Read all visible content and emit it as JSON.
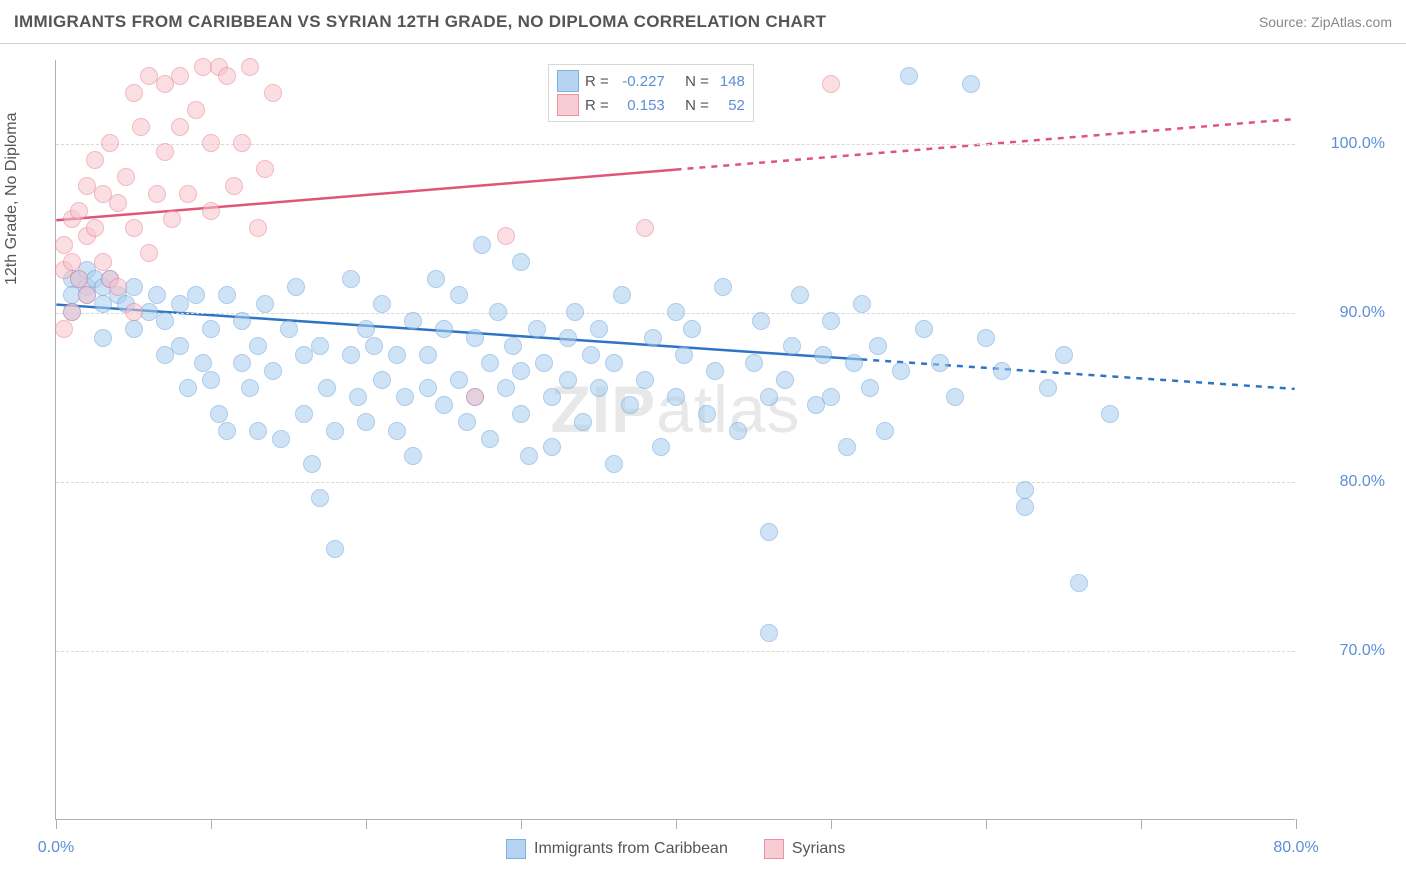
{
  "title": "IMMIGRANTS FROM CARIBBEAN VS SYRIAN 12TH GRADE, NO DIPLOMA CORRELATION CHART",
  "source_label": "Source: ",
  "source_name": "ZipAtlas.com",
  "y_axis_label": "12th Grade, No Diploma",
  "watermark": "ZIPatlas",
  "chart": {
    "type": "scatter",
    "xlim": [
      0,
      80
    ],
    "ylim": [
      60,
      105
    ],
    "x_ticks": [
      0,
      10,
      20,
      30,
      40,
      50,
      60,
      70,
      80
    ],
    "x_tick_labels": {
      "0": "0.0%",
      "80": "80.0%"
    },
    "y_ticks": [
      70,
      80,
      90,
      100
    ],
    "y_tick_labels": {
      "70": "70.0%",
      "80": "80.0%",
      "90": "90.0%",
      "100": "100.0%"
    },
    "background_color": "#ffffff",
    "grid_color": "#d8d8d8",
    "axis_color": "#b0b0b0",
    "tick_label_color": "#5b8fd6",
    "marker_radius": 9,
    "marker_border_width": 1.2,
    "series": [
      {
        "name": "Immigrants from Caribbean",
        "fill_color": "#a9cdf0",
        "stroke_color": "#6aa2de",
        "fill_opacity": 0.55,
        "line": {
          "color": "#2f74c4",
          "width": 2.5,
          "x1": 0,
          "y1": 90.5,
          "x2": 80,
          "y2": 85.5,
          "dash_after_x": 52
        },
        "R": "-0.227",
        "N": "148",
        "points": [
          [
            1,
            92
          ],
          [
            1,
            91
          ],
          [
            1.5,
            92
          ],
          [
            2,
            91.5
          ],
          [
            2,
            92.5
          ],
          [
            2,
            91
          ],
          [
            2.5,
            92
          ],
          [
            3,
            90.5
          ],
          [
            3,
            91.5
          ],
          [
            3.5,
            92
          ],
          [
            1,
            90
          ],
          [
            4,
            91
          ],
          [
            4.5,
            90.5
          ],
          [
            5,
            91.5
          ],
          [
            5,
            89
          ],
          [
            3,
            88.5
          ],
          [
            6,
            90
          ],
          [
            6.5,
            91
          ],
          [
            7,
            89.5
          ],
          [
            7,
            87.5
          ],
          [
            8,
            90.5
          ],
          [
            8,
            88
          ],
          [
            8.5,
            85.5
          ],
          [
            9,
            91
          ],
          [
            9.5,
            87
          ],
          [
            10,
            89
          ],
          [
            10,
            86
          ],
          [
            10.5,
            84
          ],
          [
            11,
            83
          ],
          [
            11,
            91
          ],
          [
            12,
            89.5
          ],
          [
            12,
            87
          ],
          [
            12.5,
            85.5
          ],
          [
            13,
            83
          ],
          [
            13,
            88
          ],
          [
            13.5,
            90.5
          ],
          [
            14,
            86.5
          ],
          [
            14.5,
            82.5
          ],
          [
            15,
            89
          ],
          [
            15.5,
            91.5
          ],
          [
            16,
            87.5
          ],
          [
            16,
            84
          ],
          [
            16.5,
            81
          ],
          [
            17,
            79
          ],
          [
            17,
            88
          ],
          [
            17.5,
            85.5
          ],
          [
            18,
            83
          ],
          [
            18,
            76
          ],
          [
            19,
            92
          ],
          [
            19,
            87.5
          ],
          [
            19.5,
            85
          ],
          [
            20,
            89
          ],
          [
            20,
            83.5
          ],
          [
            20.5,
            88
          ],
          [
            21,
            86
          ],
          [
            21,
            90.5
          ],
          [
            22,
            87.5
          ],
          [
            22,
            83
          ],
          [
            22.5,
            85
          ],
          [
            23,
            89.5
          ],
          [
            23,
            81.5
          ],
          [
            24,
            87.5
          ],
          [
            24,
            85.5
          ],
          [
            24.5,
            92
          ],
          [
            25,
            89
          ],
          [
            25,
            84.5
          ],
          [
            26,
            91
          ],
          [
            26,
            86
          ],
          [
            26.5,
            83.5
          ],
          [
            27,
            85
          ],
          [
            27,
            88.5
          ],
          [
            27.5,
            94
          ],
          [
            28,
            87
          ],
          [
            28,
            82.5
          ],
          [
            28.5,
            90
          ],
          [
            29,
            85.5
          ],
          [
            29.5,
            88
          ],
          [
            30,
            93
          ],
          [
            30,
            86.5
          ],
          [
            30,
            84
          ],
          [
            30.5,
            81.5
          ],
          [
            31,
            89
          ],
          [
            31.5,
            87
          ],
          [
            32,
            85
          ],
          [
            32,
            82
          ],
          [
            33,
            88.5
          ],
          [
            33,
            86
          ],
          [
            33.5,
            90
          ],
          [
            34,
            83.5
          ],
          [
            34.5,
            87.5
          ],
          [
            35,
            85.5
          ],
          [
            35,
            89
          ],
          [
            36,
            81
          ],
          [
            36,
            87
          ],
          [
            36.5,
            91
          ],
          [
            37,
            84.5
          ],
          [
            38,
            86
          ],
          [
            38.5,
            88.5
          ],
          [
            39,
            82
          ],
          [
            40,
            90
          ],
          [
            40,
            85
          ],
          [
            40.5,
            87.5
          ],
          [
            41,
            89
          ],
          [
            42,
            84
          ],
          [
            42.5,
            86.5
          ],
          [
            43,
            91.5
          ],
          [
            44,
            83
          ],
          [
            45,
            87
          ],
          [
            45.5,
            89.5
          ],
          [
            46,
            85
          ],
          [
            46,
            77
          ],
          [
            47,
            86
          ],
          [
            47.5,
            88
          ],
          [
            46,
            71
          ],
          [
            48,
            91
          ],
          [
            49,
            84.5
          ],
          [
            49.5,
            87.5
          ],
          [
            50,
            89.5
          ],
          [
            50,
            85
          ],
          [
            51,
            82
          ],
          [
            51.5,
            87
          ],
          [
            52,
            90.5
          ],
          [
            52.5,
            85.5
          ],
          [
            53,
            88
          ],
          [
            53.5,
            83
          ],
          [
            54.5,
            86.5
          ],
          [
            55,
            104
          ],
          [
            56,
            89
          ],
          [
            57,
            87
          ],
          [
            58,
            85
          ],
          [
            59,
            103.5
          ],
          [
            60,
            88.5
          ],
          [
            61,
            86.5
          ],
          [
            62.5,
            78.5
          ],
          [
            62.5,
            79.5
          ],
          [
            64,
            85.5
          ],
          [
            65,
            87.5
          ],
          [
            66,
            74
          ],
          [
            68,
            84
          ]
        ]
      },
      {
        "name": "Syrians",
        "fill_color": "#f6c4cc",
        "stroke_color": "#e97f97",
        "fill_opacity": 0.55,
        "line": {
          "color": "#e05577",
          "width": 2.5,
          "x1": 0,
          "y1": 95.5,
          "x2": 80,
          "y2": 101.5,
          "dash_after_x": 40
        },
        "R": "0.153",
        "N": "52",
        "points": [
          [
            0.5,
            92.5
          ],
          [
            0.5,
            94
          ],
          [
            1,
            95.5
          ],
          [
            1,
            93
          ],
          [
            1,
            90
          ],
          [
            0.5,
            89
          ],
          [
            1.5,
            96
          ],
          [
            1.5,
            92
          ],
          [
            2,
            97.5
          ],
          [
            2,
            94.5
          ],
          [
            2,
            91
          ],
          [
            2.5,
            99
          ],
          [
            2.5,
            95
          ],
          [
            3,
            93
          ],
          [
            3,
            97
          ],
          [
            3.5,
            92
          ],
          [
            3.5,
            100
          ],
          [
            4,
            96.5
          ],
          [
            4,
            91.5
          ],
          [
            4.5,
            98
          ],
          [
            5,
            103
          ],
          [
            5,
            95
          ],
          [
            5,
            90
          ],
          [
            5.5,
            101
          ],
          [
            6,
            104
          ],
          [
            6,
            93.5
          ],
          [
            6.5,
            97
          ],
          [
            7,
            99.5
          ],
          [
            7,
            103.5
          ],
          [
            7.5,
            95.5
          ],
          [
            8,
            101
          ],
          [
            8,
            104
          ],
          [
            8.5,
            97
          ],
          [
            9,
            102
          ],
          [
            9.5,
            104.5
          ],
          [
            10,
            100
          ],
          [
            10,
            96
          ],
          [
            10.5,
            104.5
          ],
          [
            11,
            104
          ],
          [
            11.5,
            97.5
          ],
          [
            12,
            100
          ],
          [
            12.5,
            104.5
          ],
          [
            13,
            95
          ],
          [
            13.5,
            98.5
          ],
          [
            14,
            103
          ],
          [
            27,
            85
          ],
          [
            29,
            94.5
          ],
          [
            38,
            95
          ],
          [
            50,
            103.5
          ]
        ]
      }
    ]
  },
  "legend_top": {
    "R_label": "R =",
    "N_label": "N ="
  },
  "bottom_legend": {
    "series1_label": "Immigrants from Caribbean",
    "series2_label": "Syrians"
  }
}
